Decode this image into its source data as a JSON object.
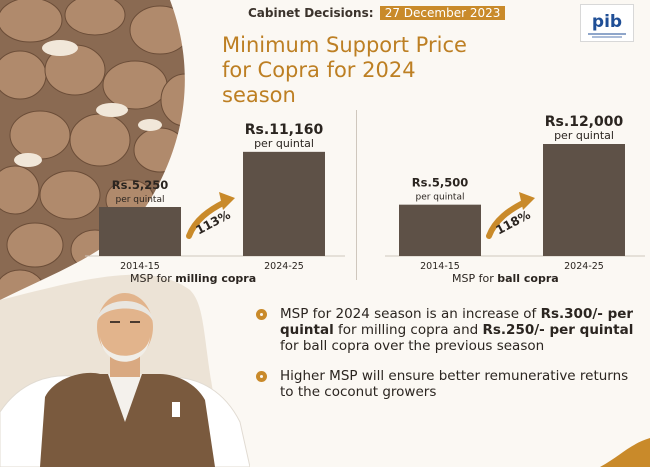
{
  "header": {
    "label": "Cabinet Decisions:",
    "date": "27 December 2023"
  },
  "logo": {
    "text": "pib"
  },
  "title": {
    "line1": "Minimum Support Price",
    "line2": "for Copra for 2024",
    "line3": "season"
  },
  "colors": {
    "bar": "#5e5147",
    "accent": "#bd7f23",
    "arrow": "#c98a2a",
    "text": "#2b2520"
  },
  "chart_data": [
    {
      "type": "bar",
      "categories": [
        "2014-15",
        "2024-25"
      ],
      "values": [
        5250,
        11160
      ],
      "value_labels": [
        "Rs.5,250",
        "Rs.11,160"
      ],
      "unit_labels": [
        "per quintal",
        "per quintal"
      ],
      "growth_label": "113%",
      "caption_prefix": "MSP for ",
      "caption_bold": "milling copra",
      "ylim": [
        0,
        12000
      ]
    },
    {
      "type": "bar",
      "categories": [
        "2014-15",
        "2024-25"
      ],
      "values": [
        5500,
        12000
      ],
      "value_labels": [
        "Rs.5,500",
        "Rs.12,000"
      ],
      "unit_labels": [
        "per quintal",
        "per quintal"
      ],
      "growth_label": "118%",
      "caption_prefix": "MSP for ",
      "caption_bold": "ball copra",
      "ylim": [
        0,
        12000
      ]
    }
  ],
  "bullets": {
    "b1": {
      "t1": "MSP for 2024 season is an increase of ",
      "t2": "Rs.300/- per quintal",
      "t3": " for milling copra and ",
      "t4": "Rs.250/- per quintal",
      "t5": " for ball copra over the previous season"
    },
    "b2": {
      "t1": "Higher MSP will ensure better remunerative returns to the coconut growers"
    }
  }
}
